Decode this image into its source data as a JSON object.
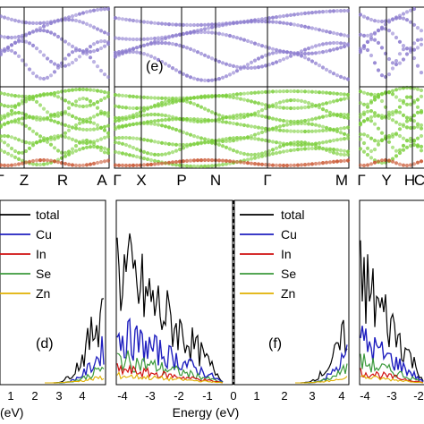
{
  "band_panels": [
    {
      "id": "left",
      "label": "",
      "kpoints": [
        "Γ",
        "Z",
        "R",
        "A"
      ]
    },
    {
      "id": "middle",
      "label": "(e)",
      "kpoints": [
        "Γ",
        "X",
        "P",
        "N",
        "Γ",
        "M"
      ]
    },
    {
      "id": "right",
      "label": "",
      "kpoints": [
        "Γ",
        "Y",
        "H",
        "C"
      ]
    }
  ],
  "dos_panels": [
    {
      "id": "d",
      "label": "(d)",
      "xticks": [
        "1",
        "2",
        "3",
        "4"
      ],
      "xlabel": "(eV)"
    },
    {
      "id": "d-neg",
      "label": "",
      "xticks": [
        "-4",
        "-3",
        "-2",
        "-1",
        "0"
      ],
      "xlabel": "Energy (eV)"
    },
    {
      "id": "f",
      "label": "(f)",
      "xticks": [
        "1",
        "2",
        "3",
        "4"
      ],
      "xlabel": ""
    },
    {
      "id": "right-neg",
      "label": "",
      "xticks": [
        "-4",
        "-3",
        "-2"
      ],
      "xlabel": ""
    }
  ],
  "legend": [
    {
      "name": "total",
      "color": "#000000"
    },
    {
      "name": "Cu",
      "color": "#1f1fbf"
    },
    {
      "name": "In",
      "color": "#d01010"
    },
    {
      "name": "Se",
      "color": "#3c9a3c"
    },
    {
      "name": "Zn",
      "color": "#e0b000"
    }
  ],
  "colors": {
    "conduction_band": "#8c7ccf",
    "valence_band": "#7ccf3c",
    "valence_band_bottom": "#c8502a"
  }
}
